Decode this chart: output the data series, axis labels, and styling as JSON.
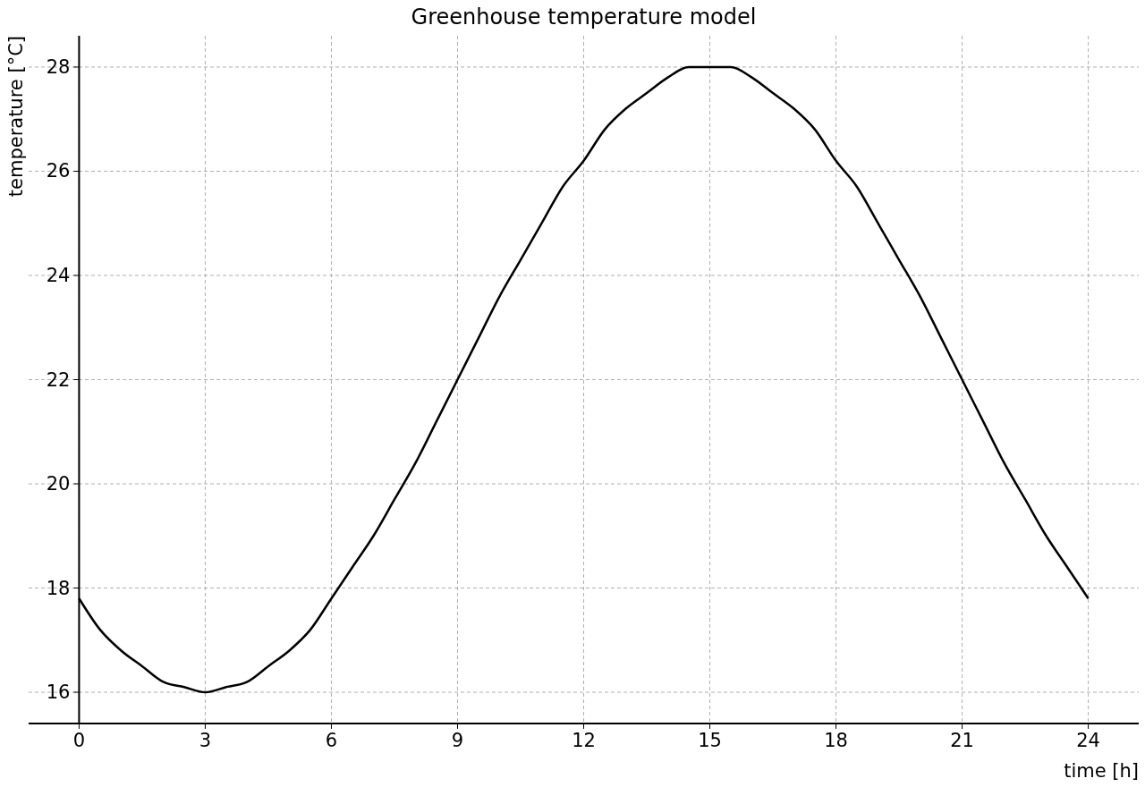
{
  "chart_data": {
    "type": "line",
    "title": "Greenhouse temperature model",
    "xlabel": "time [h]",
    "ylabel": "temperature [°C]",
    "x": [
      0,
      0.5,
      1,
      1.5,
      2,
      2.5,
      3,
      3.5,
      4,
      4.5,
      5,
      5.5,
      6,
      6.5,
      7,
      7.5,
      8,
      8.5,
      9,
      9.5,
      10,
      10.5,
      11,
      11.5,
      12,
      12.5,
      13,
      13.5,
      14,
      14.5,
      15,
      15.5,
      16,
      16.5,
      17,
      17.5,
      18,
      18.5,
      19,
      19.5,
      20,
      20.5,
      21,
      21.5,
      22,
      22.5,
      23,
      23.5,
      24
    ],
    "series": [
      {
        "color": "#000000",
        "values": [
          17.8,
          17.2,
          16.8,
          16.5,
          16.2,
          16.1,
          16.0,
          16.1,
          16.2,
          16.5,
          16.8,
          17.2,
          17.8,
          18.4,
          19.0,
          19.7,
          20.4,
          21.2,
          22.0,
          22.8,
          23.6,
          24.3,
          25.0,
          25.7,
          26.2,
          26.8,
          27.2,
          27.5,
          27.8,
          28.0,
          28.0,
          28.0,
          27.8,
          27.5,
          27.2,
          26.8,
          26.2,
          25.7,
          25.0,
          24.3,
          23.6,
          22.8,
          22.0,
          21.2,
          20.4,
          19.7,
          19.0,
          18.4,
          17.8
        ]
      }
    ],
    "xlim": [
      -1.2,
      25.2
    ],
    "ylim": [
      15.4,
      28.6
    ],
    "xticks": [
      0,
      3,
      6,
      9,
      12,
      15,
      18,
      21,
      24
    ],
    "yticks": [
      16,
      18,
      20,
      22,
      24,
      26,
      28
    ],
    "grid": true,
    "marker": "none",
    "line_style": "solid"
  }
}
